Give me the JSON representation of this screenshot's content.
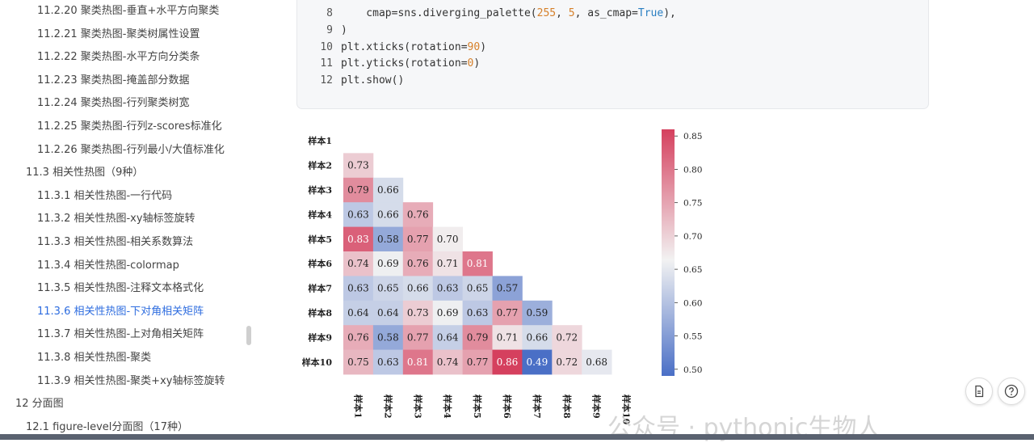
{
  "sidebar": {
    "items": [
      {
        "label": "11.2.20 聚类热图-垂直+水平方向聚类",
        "level": 3,
        "active": false
      },
      {
        "label": "11.2.21 聚类热图-聚类树属性设置",
        "level": 3,
        "active": false
      },
      {
        "label": "11.2.22 聚类热图-水平方向分类条",
        "level": 3,
        "active": false
      },
      {
        "label": "11.2.23 聚类热图-掩盖部分数据",
        "level": 3,
        "active": false
      },
      {
        "label": "11.2.24 聚类热图-行列聚类树宽",
        "level": 3,
        "active": false
      },
      {
        "label": "11.2.25 聚类热图-行列z-scores标准化",
        "level": 3,
        "active": false
      },
      {
        "label": "11.2.26 聚类热图-行列最小/大值标准化",
        "level": 3,
        "active": false
      },
      {
        "label": "11.3 相关性热图（9种）",
        "level": 2,
        "active": false
      },
      {
        "label": "11.3.1 相关性热图-一行代码",
        "level": 3,
        "active": false
      },
      {
        "label": "11.3.2 相关性热图-xy轴标签旋转",
        "level": 3,
        "active": false
      },
      {
        "label": "11.3.3 相关性热图-相关系数算法",
        "level": 3,
        "active": false
      },
      {
        "label": "11.3.4 相关性热图-colormap",
        "level": 3,
        "active": false
      },
      {
        "label": "11.3.5 相关性热图-注释文本格式化",
        "level": 3,
        "active": false
      },
      {
        "label": "11.3.6 相关性热图-下对角相关矩阵",
        "level": 3,
        "active": true
      },
      {
        "label": "11.3.7 相关性热图-上对角相关矩阵",
        "level": 3,
        "active": false
      },
      {
        "label": "11.3.8 相关性热图-聚类",
        "level": 3,
        "active": false
      },
      {
        "label": "11.3.9 相关性热图-聚类+xy轴标签旋转",
        "level": 3,
        "active": false
      },
      {
        "label": "12 分面图",
        "level": 1,
        "active": false
      },
      {
        "label": "12.1 figure-level分面图（17种）",
        "level": 2,
        "active": false
      }
    ]
  },
  "code": {
    "lines": [
      {
        "num": "8",
        "tokens": [
          {
            "t": "    cmap=sns.diverging_palette(",
            "c": ""
          },
          {
            "t": "255",
            "c": "num"
          },
          {
            "t": ", ",
            "c": ""
          },
          {
            "t": "5",
            "c": "num"
          },
          {
            "t": ", as_cmap=",
            "c": ""
          },
          {
            "t": "True",
            "c": "kw"
          },
          {
            "t": "),",
            "c": ""
          }
        ]
      },
      {
        "num": "9",
        "tokens": [
          {
            "t": ")",
            "c": ""
          }
        ]
      },
      {
        "num": "10",
        "tokens": [
          {
            "t": "plt.xticks(rotation=",
            "c": ""
          },
          {
            "t": "90",
            "c": "num"
          },
          {
            "t": ")",
            "c": ""
          }
        ]
      },
      {
        "num": "11",
        "tokens": [
          {
            "t": "plt.yticks(rotation=",
            "c": ""
          },
          {
            "t": "0",
            "c": "num"
          },
          {
            "t": ")",
            "c": ""
          }
        ]
      },
      {
        "num": "12",
        "tokens": [
          {
            "t": "plt.show()",
            "c": ""
          }
        ]
      }
    ]
  },
  "chart_data": {
    "type": "heatmap",
    "labels": [
      "样本1",
      "样本2",
      "样本3",
      "样本4",
      "样本5",
      "样本6",
      "样本7",
      "样本8",
      "样本9",
      "样本10"
    ],
    "matrix": [
      [],
      [
        0.73
      ],
      [
        0.79,
        0.66
      ],
      [
        0.63,
        0.66,
        0.76
      ],
      [
        0.83,
        0.58,
        0.77,
        0.7
      ],
      [
        0.74,
        0.69,
        0.76,
        0.71,
        0.81
      ],
      [
        0.63,
        0.65,
        0.66,
        0.63,
        0.65,
        0.57
      ],
      [
        0.64,
        0.64,
        0.73,
        0.69,
        0.63,
        0.77,
        0.59
      ],
      [
        0.76,
        0.58,
        0.77,
        0.64,
        0.79,
        0.71,
        0.66,
        0.72
      ],
      [
        0.75,
        0.63,
        0.81,
        0.74,
        0.77,
        0.86,
        0.49,
        0.72,
        0.68
      ]
    ],
    "mask": "upper triangle including diagonal",
    "annotation_format": "0.00",
    "colorbar": {
      "ticks": [
        "0.50",
        "0.55",
        "0.60",
        "0.65",
        "0.70",
        "0.75",
        "0.80",
        "0.85"
      ],
      "range": [
        0.49,
        0.86
      ]
    },
    "colormap": {
      "low": "#4a6fc6",
      "mid": "#f2f2f2",
      "high": "#d5405e"
    }
  },
  "buttons": {
    "doc_icon": "doc-icon",
    "help_icon": "question-icon"
  },
  "watermark": "公众号 · pythonic生物人"
}
